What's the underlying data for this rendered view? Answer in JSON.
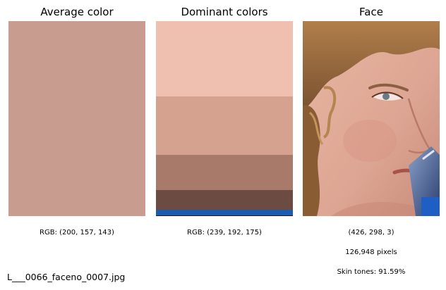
{
  "panels": {
    "average": {
      "title": "Average color",
      "rgb_label": "RGB: (200, 157, 143)",
      "color": "#c89d8f"
    },
    "dominant": {
      "title": "Dominant colors",
      "rgb_label": "RGB: (239, 192, 175)",
      "bands": [
        {
          "color": "#efc0af",
          "fraction": 0.387
        },
        {
          "color": "#d4a28f",
          "fraction": 0.3
        },
        {
          "color": "#a87a6a",
          "fraction": 0.18
        },
        {
          "color": "#6c4c42",
          "fraction": 0.102
        },
        {
          "color": "#1c5cb0",
          "fraction": 0.026
        },
        {
          "color": "#1a1a1a",
          "fraction": 0.005
        }
      ]
    },
    "face": {
      "title": "Face",
      "shape_label": "(426, 298, 3)",
      "pixels_label": "126,948 pixels",
      "skin_label": "Skin tones: 91.59%"
    }
  },
  "filename": "L___0066_faceno_0007.jpg"
}
